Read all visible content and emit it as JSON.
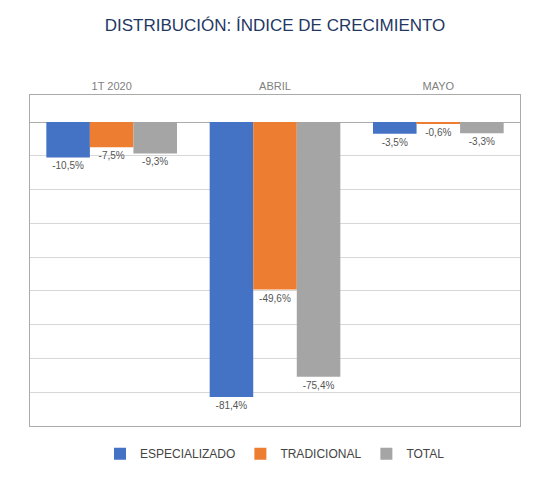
{
  "chart_data": {
    "type": "bar",
    "title": "DISTRIBUCIÓN: ÍNDICE DE CRECIMIENTO",
    "categories": [
      "1T 2020",
      "ABRIL",
      "MAYO"
    ],
    "series": [
      {
        "name": "ESPECIALIZADO",
        "color": "#4472C4",
        "values": [
          -10.5,
          -81.4,
          -3.5
        ],
        "value_labels": [
          "-10,5%",
          "-81,4%",
          "-3,5%"
        ]
      },
      {
        "name": "TRADICIONAL",
        "color": "#ED7D31",
        "values": [
          -7.5,
          -49.6,
          -0.6
        ],
        "value_labels": [
          "-7,5%",
          "-49,6%",
          "-0,6%"
        ]
      },
      {
        "name": "TOTAL",
        "color": "#A5A5A5",
        "values": [
          -9.3,
          -75.4,
          -3.3
        ],
        "value_labels": [
          "-9,3%",
          "-75,4%",
          "-3,3%"
        ]
      }
    ],
    "ylim": [
      -90,
      8
    ],
    "yticks": [
      -80,
      -70,
      -60,
      -50,
      -40,
      -30,
      -20,
      -10,
      0
    ],
    "grid": true,
    "legend": "bottom",
    "data_labels": true,
    "tick_labels": "x"
  }
}
